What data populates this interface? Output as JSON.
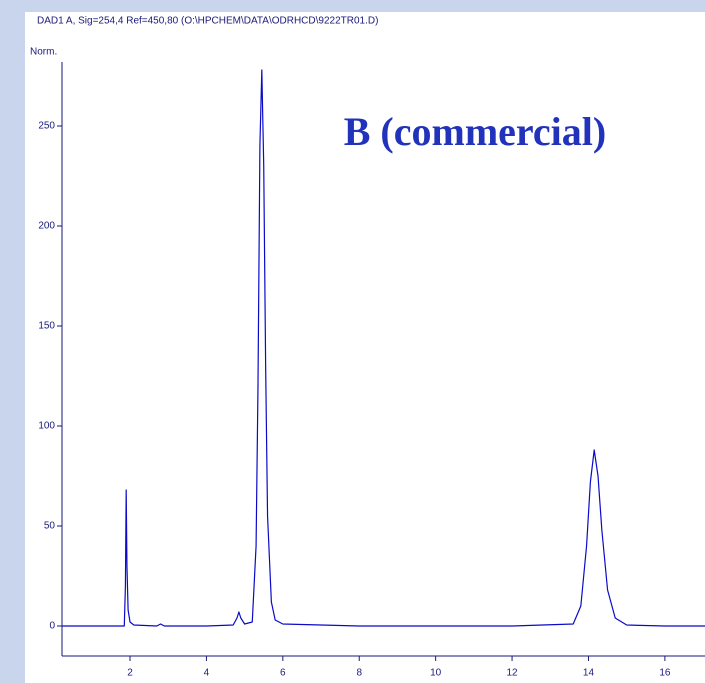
{
  "chart_data": {
    "type": "line",
    "title": "DAD1 A, Sig=254,4 Ref=450,80 (O:\\HPCHEM\\DATA\\ODRHCD\\9222TR01.D)",
    "y_label": "Norm.",
    "annotation": "B (commercial)",
    "x": [
      0.22,
      1.0,
      1.8,
      1.85,
      1.88,
      1.9,
      1.92,
      1.95,
      2.0,
      2.1,
      2.7,
      2.8,
      2.9,
      4.0,
      4.7,
      4.8,
      4.85,
      4.9,
      5.0,
      5.2,
      5.3,
      5.35,
      5.4,
      5.45,
      5.5,
      5.55,
      5.6,
      5.7,
      5.8,
      6.0,
      8.0,
      10.0,
      12.0,
      13.6,
      13.8,
      13.95,
      14.05,
      14.15,
      14.25,
      14.35,
      14.5,
      14.7,
      15.0,
      16.0,
      17.05
    ],
    "series": [
      {
        "name": "DAD1 A",
        "color": "#0a0ac8",
        "values": [
          0,
          0,
          0,
          0,
          20,
          68,
          30,
          8,
          2,
          0.5,
          0,
          1,
          0,
          0,
          0.5,
          4,
          7,
          4,
          1,
          2,
          40,
          120,
          240,
          278,
          230,
          130,
          55,
          12,
          3,
          1,
          0,
          0,
          0,
          1,
          10,
          40,
          72,
          88,
          75,
          48,
          18,
          4,
          0.5,
          0,
          0
        ]
      }
    ],
    "xlim": [
      0.22,
      17.05
    ],
    "ylim": [
      -15,
      282
    ],
    "xticks": [
      2,
      4,
      6,
      8,
      10,
      12,
      14,
      16
    ],
    "yticks": [
      0,
      50,
      100,
      150,
      200,
      250
    ]
  }
}
